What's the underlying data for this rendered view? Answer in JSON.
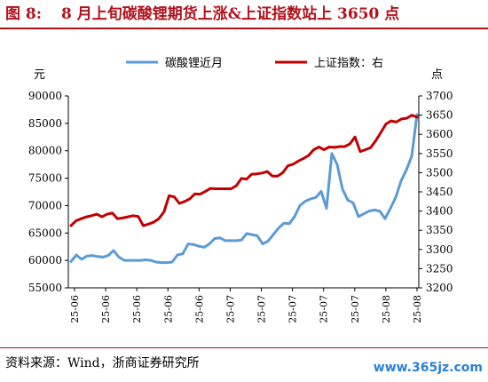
{
  "header": {
    "figure_number": "图 8:",
    "title": "8 月上旬碳酸锂期货上涨&上证指数站上 3650 点"
  },
  "footer": {
    "source": "资料来源：Wind，浙商证券研究所",
    "watermark": "www.365jz.com"
  },
  "colors": {
    "title": "#b0121b",
    "series_lithium": "#5b9bd5",
    "series_index": "#c00000",
    "watermark": "#2b7fd8"
  },
  "chart_data": {
    "type": "line",
    "x_tick_labels": [
      "25-06",
      "25-06",
      "25-06",
      "25-06",
      "25-06",
      "25-07",
      "25-07",
      "25-07",
      "25-07",
      "25-07",
      "25-08",
      "25-08"
    ],
    "left_axis": {
      "unit_label": "元",
      "ylim": [
        55000,
        90000
      ],
      "ticks": [
        55000,
        60000,
        65000,
        70000,
        75000,
        80000,
        85000,
        90000
      ]
    },
    "right_axis": {
      "unit_label": "点",
      "ylim": [
        3200,
        3700
      ],
      "ticks": [
        3200,
        3250,
        3300,
        3350,
        3400,
        3450,
        3500,
        3550,
        3600,
        3650,
        3700
      ]
    },
    "legend_position": "top",
    "grid": false,
    "series": [
      {
        "name": "碳酸锂近月",
        "axis": "left",
        "color": "#5b9bd5",
        "values": [
          59800,
          61000,
          60200,
          60800,
          60900,
          60700,
          60600,
          60900,
          61800,
          60600,
          60000,
          60000,
          60000,
          60000,
          60100,
          60000,
          59700,
          59600,
          59600,
          59700,
          61000,
          61200,
          63000,
          62900,
          62600,
          62400,
          63000,
          64000,
          64100,
          63600,
          63600,
          63600,
          63700,
          64900,
          64700,
          64500,
          63000,
          63500,
          64700,
          65900,
          66800,
          66700,
          68000,
          70000,
          70800,
          71200,
          71500,
          72600,
          69500,
          79500,
          77500,
          73000,
          71000,
          70500,
          68000,
          68500,
          69000,
          69200,
          69000,
          67600,
          69500,
          71500,
          74500,
          76500,
          79000,
          86600
        ]
      },
      {
        "name": "上证指数：右",
        "axis": "right",
        "color": "#c00000",
        "values": [
          3362,
          3375,
          3380,
          3385,
          3388,
          3392,
          3385,
          3392,
          3395,
          3380,
          3382,
          3385,
          3388,
          3386,
          3362,
          3366,
          3371,
          3380,
          3398,
          3440,
          3437,
          3420,
          3425,
          3432,
          3445,
          3444,
          3451,
          3459,
          3458,
          3458,
          3458,
          3458,
          3466,
          3485,
          3483,
          3496,
          3497,
          3499,
          3503,
          3491,
          3491,
          3500,
          3518,
          3522,
          3530,
          3537,
          3545,
          3560,
          3567,
          3560,
          3567,
          3566,
          3568,
          3568,
          3575,
          3593,
          3555,
          3560,
          3565,
          3583,
          3605,
          3627,
          3635,
          3632,
          3640,
          3642,
          3650,
          3645
        ]
      }
    ]
  }
}
